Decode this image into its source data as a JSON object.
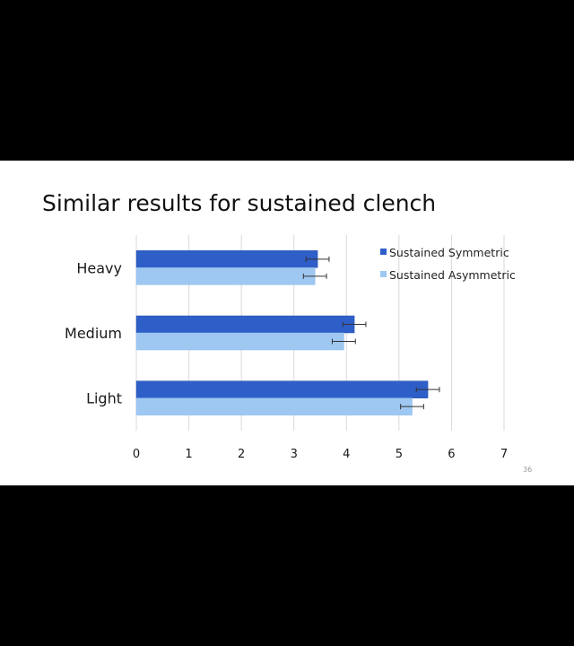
{
  "slide": {
    "title": "Similar results for sustained clench",
    "slide_number": "36"
  },
  "chart_data": {
    "type": "bar",
    "orientation": "horizontal",
    "title": "",
    "xlabel": "",
    "ylabel": "",
    "categories": [
      "Heavy",
      "Medium",
      "Light"
    ],
    "xlim": [
      0,
      7
    ],
    "xticks": [
      "0",
      "1",
      "2",
      "3",
      "4",
      "5",
      "6",
      "7"
    ],
    "grid": true,
    "legend_position": "top-right",
    "series": [
      {
        "name": "Sustained Symmetric",
        "color": "#2e5fc9",
        "values": [
          3.45,
          4.15,
          5.55
        ],
        "error": [
          0.22,
          0.22,
          0.22
        ]
      },
      {
        "name": "Sustained Asymmetric",
        "color": "#9ec8f2",
        "values": [
          3.4,
          3.95,
          5.25
        ],
        "error": [
          0.22,
          0.22,
          0.22
        ]
      }
    ]
  }
}
